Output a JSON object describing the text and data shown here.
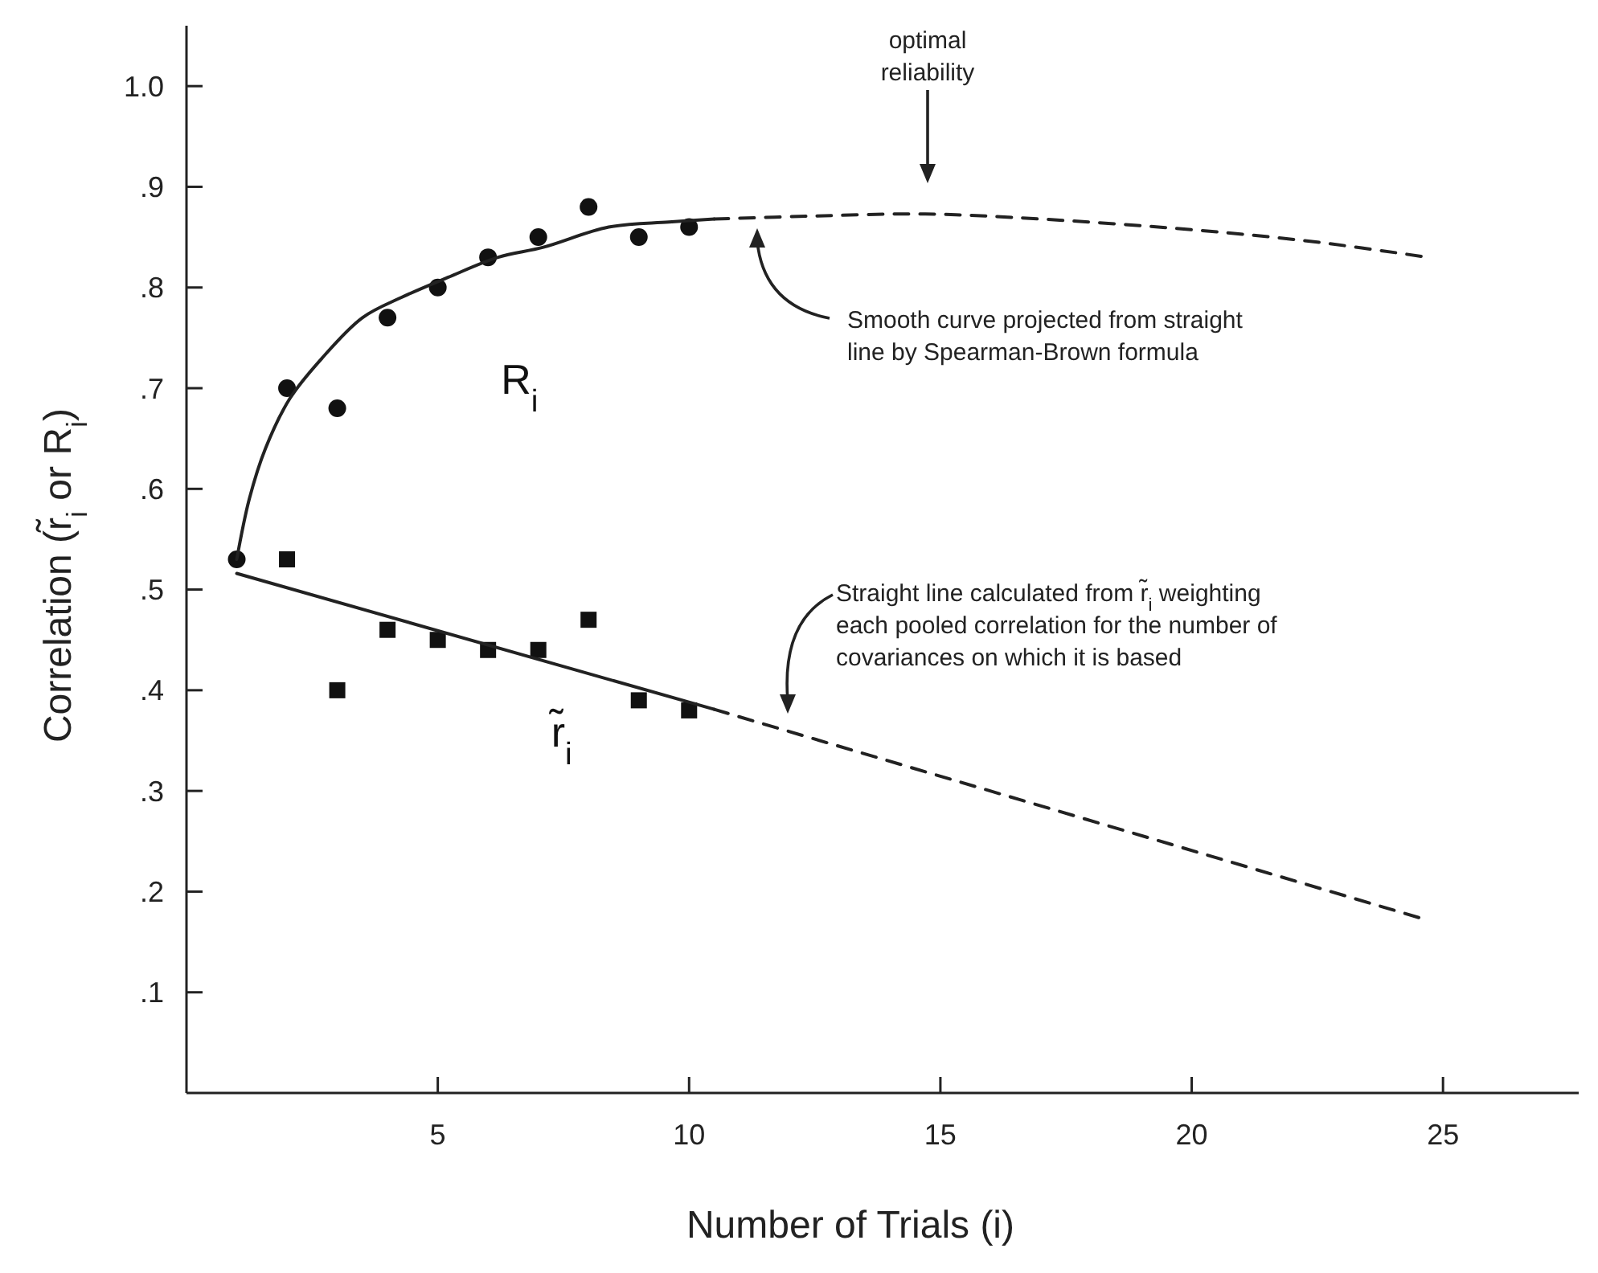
{
  "chart_data": {
    "type": "scatter",
    "xlabel": "Number of Trials (i)",
    "ylabel": "Correlation (r̃$_{i}$ or R$_{i}$)",
    "xlim": [
      0,
      27.7
    ],
    "ylim": [
      0,
      1.06
    ],
    "xticks": [
      5,
      10,
      15,
      20,
      25
    ],
    "yticks": [
      {
        "value": 0.1,
        "label": ".1"
      },
      {
        "value": 0.2,
        "label": ".2"
      },
      {
        "value": 0.3,
        "label": ".3"
      },
      {
        "value": 0.4,
        "label": ".4"
      },
      {
        "value": 0.5,
        "label": ".5"
      },
      {
        "value": 0.6,
        "label": ".6"
      },
      {
        "value": 0.7,
        "label": ".7"
      },
      {
        "value": 0.8,
        "label": ".8"
      },
      {
        "value": 0.9,
        "label": ".9"
      },
      {
        "value": 1.0,
        "label": "1.0"
      }
    ],
    "grid": false,
    "series": [
      {
        "name": "R$_{i}$",
        "marker": "circle",
        "color": "#111111",
        "x": [
          1,
          2,
          3,
          4,
          5,
          6,
          7,
          8,
          9,
          10
        ],
        "values": [
          0.53,
          0.7,
          0.68,
          0.77,
          0.8,
          0.83,
          0.85,
          0.88,
          0.85,
          0.86
        ]
      },
      {
        "name": "r̃$_{i}$",
        "marker": "square",
        "color": "#111111",
        "x": [
          2,
          3,
          4,
          5,
          6,
          7,
          8,
          9,
          10
        ],
        "values": [
          0.53,
          0.4,
          0.46,
          0.45,
          0.44,
          0.44,
          0.47,
          0.39,
          0.38
        ]
      },
      {
        "type": "line",
        "line_style": "solid",
        "color": "#222222",
        "x": [
          1,
          1.25,
          1.57,
          2.06,
          2.7,
          3.5,
          4.27,
          5.2,
          6.2,
          7.1,
          8.4,
          9.6,
          10.5
        ],
        "values": [
          0.53,
          0.59,
          0.64,
          0.69,
          0.73,
          0.77,
          0.79,
          0.81,
          0.83,
          0.84,
          0.86,
          0.865,
          0.868
        ]
      },
      {
        "type": "line",
        "line_style": "dashed",
        "color": "#222222",
        "x": [
          10.5,
          12.5,
          14.7,
          17,
          20.1,
          22.5,
          24.7
        ],
        "values": [
          0.868,
          0.871,
          0.873,
          0.868,
          0.857,
          0.845,
          0.83
        ]
      },
      {
        "type": "line",
        "line_style": "solid",
        "color": "#222222",
        "x": [
          1,
          10.5
        ],
        "values": [
          0.516,
          0.381
        ]
      },
      {
        "type": "line",
        "line_style": "dashed",
        "color": "#222222",
        "x": [
          10.5,
          24.6
        ],
        "values": [
          0.381,
          0.173
        ]
      }
    ],
    "annotations": [
      "optimal reliability",
      "Smooth curve projected from straight line by Spearman-Brown formula",
      "Straight line calculated from r̃$_{i}$ weighting each pooled correlation for the number of covariances on which it is based"
    ]
  }
}
